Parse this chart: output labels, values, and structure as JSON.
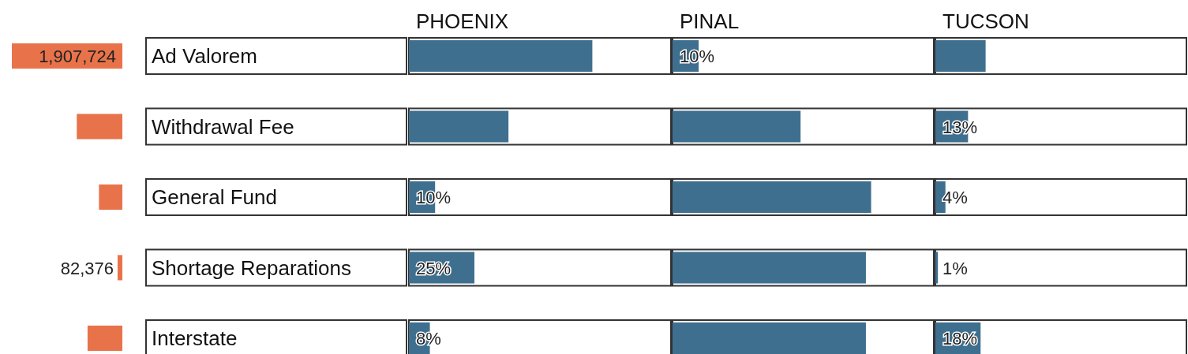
{
  "chart_data": [
    {
      "type": "bar",
      "orientation": "horizontal",
      "categories": [
        "Ad Valorem",
        "Withdrawal Fee",
        "General Fund",
        "Shortage Reparations",
        "Interstate"
      ],
      "values": [
        1907724,
        787000,
        403830,
        82376,
        600600
      ],
      "value_labels": [
        "1,907,724",
        null,
        null,
        "82,376",
        null
      ],
      "color": "#e8734a",
      "tick_labels": "y"
    },
    {
      "type": "bar",
      "orientation": "horizontal",
      "title": "PHOENIX",
      "values": [
        70,
        38,
        10,
        25,
        8
      ],
      "value_labels": [
        null,
        null,
        "10%",
        "25%",
        "8%"
      ],
      "color": "#3f6f8f",
      "xlim": [
        0,
        100
      ],
      "tick_labels": false
    },
    {
      "type": "bar",
      "orientation": "horizontal",
      "title": "PINAL",
      "values": [
        10,
        49,
        76,
        74,
        74
      ],
      "value_labels": [
        "10%",
        null,
        null,
        null,
        null
      ],
      "color": "#3f6f8f",
      "xlim": [
        0,
        100
      ],
      "tick_labels": false
    },
    {
      "type": "bar",
      "orientation": "horizontal",
      "title": "TUCSON",
      "values": [
        20,
        13,
        4,
        1,
        18
      ],
      "value_labels": [
        null,
        "13%",
        "4%",
        "1%",
        "18%"
      ],
      "color": "#3f6f8f",
      "xlim": [
        0,
        100
      ],
      "tick_labels": false
    }
  ]
}
